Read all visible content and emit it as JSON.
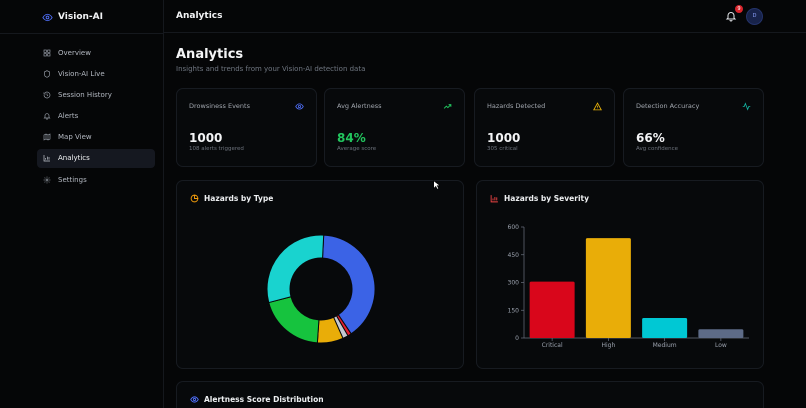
{
  "app": {
    "name": "Vision-AI"
  },
  "topbar": {
    "title": "Analytics",
    "notification_count": "9",
    "avatar_initial": "D"
  },
  "sidebar": {
    "items": [
      {
        "label": "Overview",
        "icon": "grid-icon"
      },
      {
        "label": "Vision-AI Live",
        "icon": "shield-icon"
      },
      {
        "label": "Session History",
        "icon": "history-icon"
      },
      {
        "label": "Alerts",
        "icon": "bell-icon"
      },
      {
        "label": "Map View",
        "icon": "map-icon"
      },
      {
        "label": "Analytics",
        "icon": "bar-chart-icon",
        "active": true
      },
      {
        "label": "Settings",
        "icon": "gear-icon"
      }
    ]
  },
  "page": {
    "title": "Analytics",
    "subtitle": "Insights and trends from your Vision-AI detection data"
  },
  "stats": [
    {
      "label": "Drowsiness Events",
      "value": "1000",
      "sub": "108 alerts triggered",
      "icon": "eye-icon",
      "color": "#4f6ef7"
    },
    {
      "label": "Avg Alertness",
      "value": "84%",
      "sub": "Average score",
      "icon": "trending-up-icon",
      "color": "#22c55e"
    },
    {
      "label": "Hazards Detected",
      "value": "1000",
      "sub": "305 critical",
      "icon": "warning-triangle-icon",
      "color": "#eab308"
    },
    {
      "label": "Detection Accuracy",
      "value": "66%",
      "sub": "Avg confidence",
      "icon": "activity-icon",
      "color": "#14b8a6"
    }
  ],
  "panels": {
    "hazards_by_type": "Hazards by Type",
    "hazards_by_severity": "Hazards by Severity",
    "alertness_distribution": "Alertness Score Distribution"
  },
  "chart_data": [
    {
      "type": "pie",
      "title": "Hazards by Type",
      "donut": true,
      "slices": [
        {
          "value": 36,
          "color": "#3b63e6"
        },
        {
          "value": 1,
          "color": "#e11d2e"
        },
        {
          "value": 1.5,
          "color": "#c4c8d0"
        },
        {
          "value": 7,
          "color": "#e9ad08"
        },
        {
          "value": 18,
          "color": "#16c33e"
        },
        {
          "value": 27,
          "color": "#19d3cf"
        }
      ]
    },
    {
      "type": "bar",
      "title": "Hazards by Severity",
      "categories": [
        "Critical",
        "High",
        "Medium",
        "Low"
      ],
      "values": [
        305,
        540,
        108,
        47
      ],
      "colors": [
        "#d9061b",
        "#e9ad08",
        "#00c8d4",
        "#5d6b87"
      ],
      "ylim": [
        0,
        600
      ],
      "yticks": [
        0,
        150,
        300,
        450,
        600
      ],
      "grid": false
    }
  ]
}
